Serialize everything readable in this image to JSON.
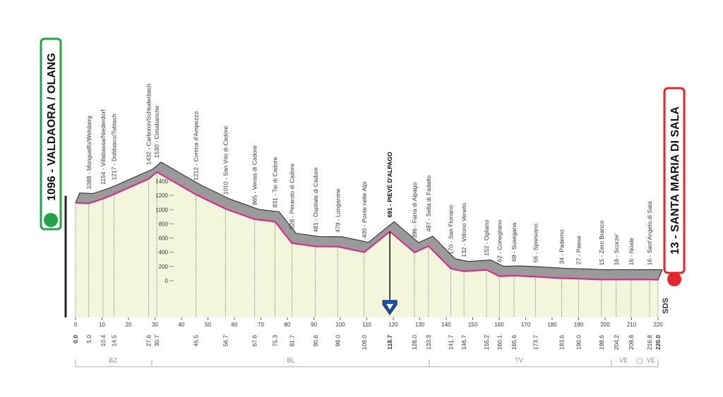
{
  "chart_data": {
    "type": "area",
    "x": [
      {
        "value": 0,
        "label": "0.0"
      },
      {
        "value": 5,
        "label": "5.0"
      },
      {
        "value": 10.4,
        "label": "10.4"
      },
      {
        "value": 14.5,
        "label": "14.5"
      },
      {
        "value": 27.6,
        "label": "27.6"
      },
      {
        "value": 30.7,
        "label": "30.7"
      },
      {
        "value": 45.5,
        "label": "45.5"
      },
      {
        "value": 56.7,
        "label": "56.7"
      },
      {
        "value": 67.6,
        "label": "67.6"
      },
      {
        "value": 75.3,
        "label": "75.3"
      },
      {
        "value": 81.7,
        "label": "81.7"
      },
      {
        "value": 90.6,
        "label": "90.6"
      },
      {
        "value": 99,
        "label": "99.0"
      },
      {
        "value": 109,
        "label": "109.0"
      },
      {
        "value": 118.7,
        "label": "118.7"
      },
      {
        "value": 128,
        "label": "128.0"
      },
      {
        "value": 133.3,
        "label": "133.3"
      },
      {
        "value": 141.7,
        "label": "141.7"
      },
      {
        "value": 146.7,
        "label": "146.7"
      },
      {
        "value": 155.2,
        "label": "155.2"
      },
      {
        "value": 160.1,
        "label": "160.1"
      },
      {
        "value": 165.6,
        "label": "165.6"
      },
      {
        "value": 173.7,
        "label": "173.7"
      },
      {
        "value": 183.6,
        "label": "183.6"
      },
      {
        "value": 190,
        "label": "190.0"
      },
      {
        "value": 198.6,
        "label": "198.6"
      },
      {
        "value": 204.2,
        "label": "204.2"
      },
      {
        "value": 209.8,
        "label": "209.8"
      },
      {
        "value": 216.8,
        "label": "216.8"
      },
      {
        "value": 220,
        "label": "220.0"
      }
    ],
    "values": [
      1096,
      1088,
      1154,
      1217,
      1432,
      1530,
      1212,
      1010,
      865,
      831,
      528,
      481,
      479,
      400,
      691,
      396,
      487,
      170,
      132,
      152,
      62,
      69,
      56,
      34,
      27,
      15,
      16,
      16,
      16,
      13
    ],
    "value_labels": [
      "1096 - VALDAORA / OLANG",
      "1088 - Monguelfo/Welsberg",
      "1154 - Villabassa/Niederdorf",
      "1217 - Dobbiaco/Toblach",
      "1432 - Carbonin/Schluderbach",
      "1530 - Cimabanche",
      "1212 - Cortina d'Ampezzo",
      "1010 - San Vito di Cadore",
      "865 - Venas di Cadore",
      "831 - Tai di Cadore",
      "528 - Perarolo di Cadore",
      "481 - Ospitale di Cadore",
      "479 - Longarone",
      "400 - Ponte nelle Alpi",
      "691 - PIEVE D'ALPAGO",
      "396 - Farra di Alpago",
      "487 - Sella di Fadalto",
      "170 - San Floriano",
      "132 - Vittorio Veneto",
      "152 - Ogliano",
      "62 - Conegliano",
      "69 - Susegana",
      "56 - Spresiano",
      "34 - Paderno",
      "27 - Paese",
      "15 - Zero Branco",
      "16 - Scorze'",
      "16 - Noale",
      "16 - Sant'Angelo di Sala",
      "13 - SANTA MARIA DI SALA"
    ],
    "xlim": [
      0,
      220
    ],
    "xticks": [
      0,
      10,
      20,
      30,
      40,
      50,
      60,
      70,
      80,
      90,
      100,
      110,
      120,
      130,
      140,
      150,
      160,
      170,
      180,
      190,
      200,
      210,
      220
    ],
    "ylim": [
      0,
      1400
    ],
    "yticks": [
      0,
      200,
      400,
      600,
      800,
      1000,
      1200,
      1400
    ],
    "color": "#e0218a",
    "provinces": [
      "BZ",
      "BL",
      "TV",
      "VE",
      "VE"
    ],
    "logo": "SDS"
  }
}
